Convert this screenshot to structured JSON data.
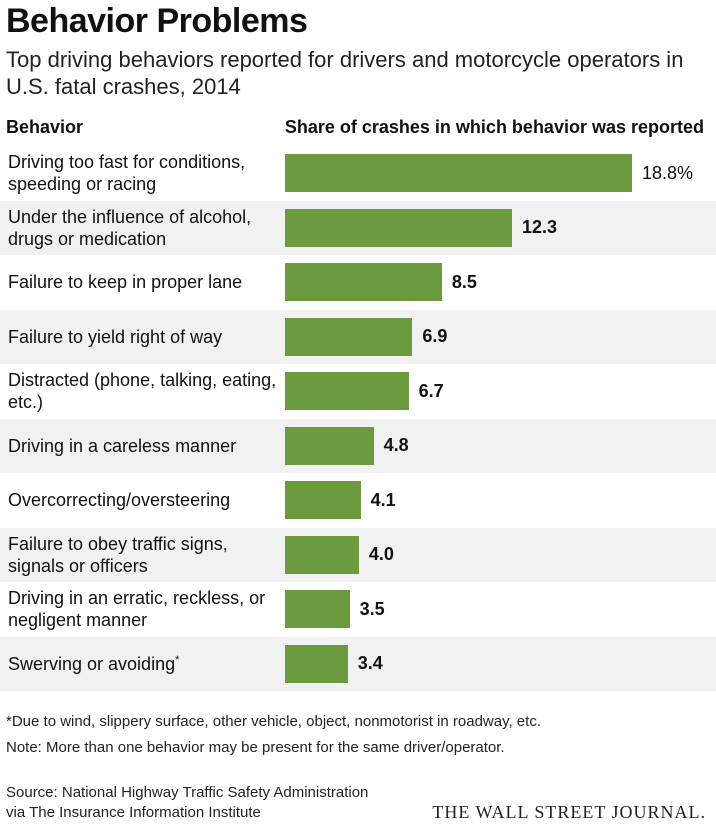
{
  "title": "Behavior Problems",
  "subtitle": "Top driving behaviors reported for drivers and motorcycle operators in U.S. fatal crashes, 2014",
  "col_head_left": "Behavior",
  "col_head_right": "Share of crashes in which behavior was reported",
  "footnote_1": "*Due to wind, slippery surface, other vehicle, object, nonmotorist in roadway, etc.",
  "footnote_2": "Note: More than one behavior may be present for the same driver/operator.",
  "source_line_1": "Source: National Highway Traffic Safety Administration",
  "source_line_2": "via The Insurance Information Institute",
  "brand": "THE WALL STREET JOURNAL.",
  "colors": {
    "bar": "#6c9a3e",
    "row_shade": "#f1f1f1"
  },
  "chart_data": {
    "type": "bar",
    "orientation": "horizontal",
    "title": "Behavior Problems",
    "xlabel": "Share of crashes in which behavior was reported",
    "ylabel": "Behavior",
    "xlim": [
      0,
      18.8
    ],
    "grid": false,
    "categories": [
      "Driving too fast for conditions, speeding or racing",
      "Under the influence of alcohol, drugs or medication",
      "Failure to keep in proper lane",
      "Failure to yield right of way",
      "Distracted (phone, talking, eating, etc.)",
      "Driving in a careless manner",
      "Overcorrecting/oversteering",
      "Failure to obey traffic signs, signals or officers",
      "Driving in an erratic, reckless, or negligent manner",
      "Swerving or avoiding"
    ],
    "values": [
      18.8,
      12.3,
      8.5,
      6.9,
      6.7,
      4.8,
      4.1,
      4.0,
      3.5,
      3.4
    ],
    "value_labels": [
      "18.8%",
      "12.3",
      "8.5",
      "6.9",
      "6.7",
      "4.8",
      "4.1",
      "4.0",
      "3.5",
      "3.4"
    ],
    "asterisk_marks": [
      "",
      "",
      "",
      "",
      "",
      "",
      "",
      "",
      "",
      "*"
    ]
  }
}
